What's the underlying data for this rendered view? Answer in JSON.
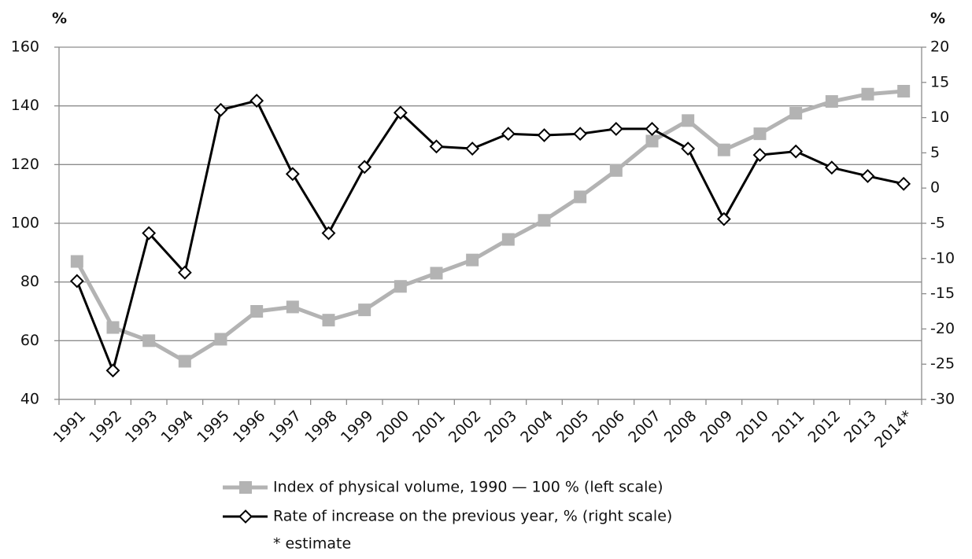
{
  "chart_data": {
    "type": "line",
    "ylabel": "%",
    "y2label": "%",
    "categories": [
      "1991",
      "1992",
      "1993",
      "1994",
      "1995",
      "1996",
      "1997",
      "1998",
      "1999",
      "2000",
      "2001",
      "2002",
      "2003",
      "2004",
      "2005",
      "2006",
      "2007",
      "2008",
      "2009",
      "2010",
      "2011",
      "2012",
      "2013",
      "2014*"
    ],
    "series": [
      {
        "name": "Index of physical volume, 1990 — 100 % (left scale)",
        "color": "#b3b3b3",
        "marker": "square",
        "axis": "y",
        "values": [
          87,
          64.5,
          60,
          53,
          60.5,
          70,
          71.5,
          67,
          70.5,
          78.5,
          83,
          87.5,
          94.5,
          101,
          109,
          118,
          128,
          135,
          125,
          130.5,
          137.5,
          141.5,
          144,
          145
        ]
      },
      {
        "name": "Rate of increase on the previous year, % (right scale)",
        "color": "#000000",
        "marker": "diamond",
        "axis": "y2",
        "values": [
          -13.2,
          -25.9,
          -6.4,
          -12,
          11.1,
          12.4,
          2,
          -6.4,
          3,
          10.7,
          5.9,
          5.6,
          7.7,
          7.5,
          7.7,
          8.4,
          8.4,
          5.6,
          -4.4,
          4.7,
          5.2,
          2.9,
          1.7,
          0.6
        ]
      }
    ],
    "ylim": [
      40,
      160
    ],
    "yticks": [
      40,
      60,
      80,
      100,
      120,
      140,
      160
    ],
    "y2lim": [
      -30,
      20
    ],
    "y2ticks": [
      -30,
      -25,
      -20,
      -15,
      -10,
      -5,
      0,
      5,
      10,
      15,
      20
    ],
    "grid": true,
    "note": "* estimate"
  }
}
